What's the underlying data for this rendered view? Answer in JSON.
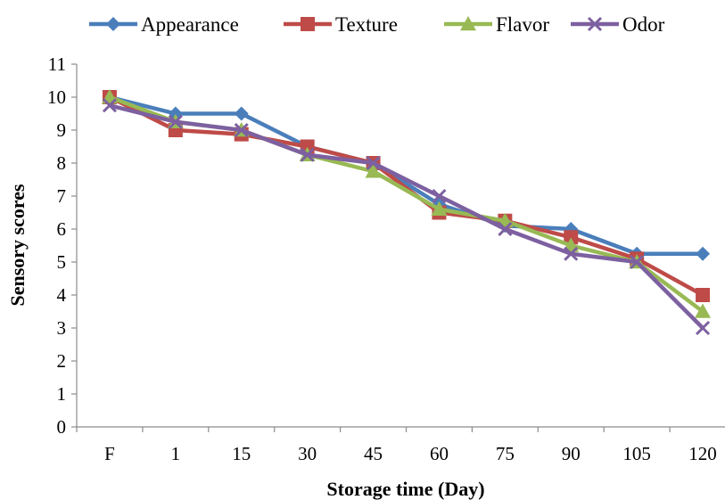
{
  "chart_data": {
    "type": "line",
    "categories": [
      "F",
      "1",
      "15",
      "30",
      "45",
      "60",
      "75",
      "90",
      "105",
      "120"
    ],
    "series": [
      {
        "name": "Appearance",
        "color": "#4a7ebb",
        "marker": "diamond",
        "values": [
          10.0,
          9.5,
          9.5,
          8.5,
          8.0,
          6.75,
          6.1,
          6.0,
          5.25,
          5.25
        ]
      },
      {
        "name": "Texture",
        "color": "#be4b48",
        "marker": "square",
        "values": [
          10.0,
          9.0,
          8.875,
          8.5,
          8.0,
          6.5,
          6.25,
          5.75,
          5.1,
          4.0
        ]
      },
      {
        "name": "Flavor",
        "color": "#98b954",
        "marker": "triangle",
        "values": [
          10.0,
          9.25,
          9.0,
          8.25,
          7.75,
          6.6,
          6.25,
          5.5,
          5.0,
          3.5
        ]
      },
      {
        "name": "Odor",
        "color": "#7d60a0",
        "marker": "x",
        "values": [
          9.75,
          9.25,
          9.0,
          8.25,
          8.0,
          7.0,
          6.0,
          5.25,
          5.0,
          3.0
        ]
      }
    ],
    "xlabel": "Storage time (Day)",
    "ylabel": "Sensory scores",
    "ylim": [
      0,
      11
    ],
    "yticks": [
      "0",
      "1",
      "2",
      "3",
      "4",
      "5",
      "6",
      "7",
      "8",
      "9",
      "10",
      "11"
    ],
    "grid": false,
    "legend_position": "top"
  }
}
